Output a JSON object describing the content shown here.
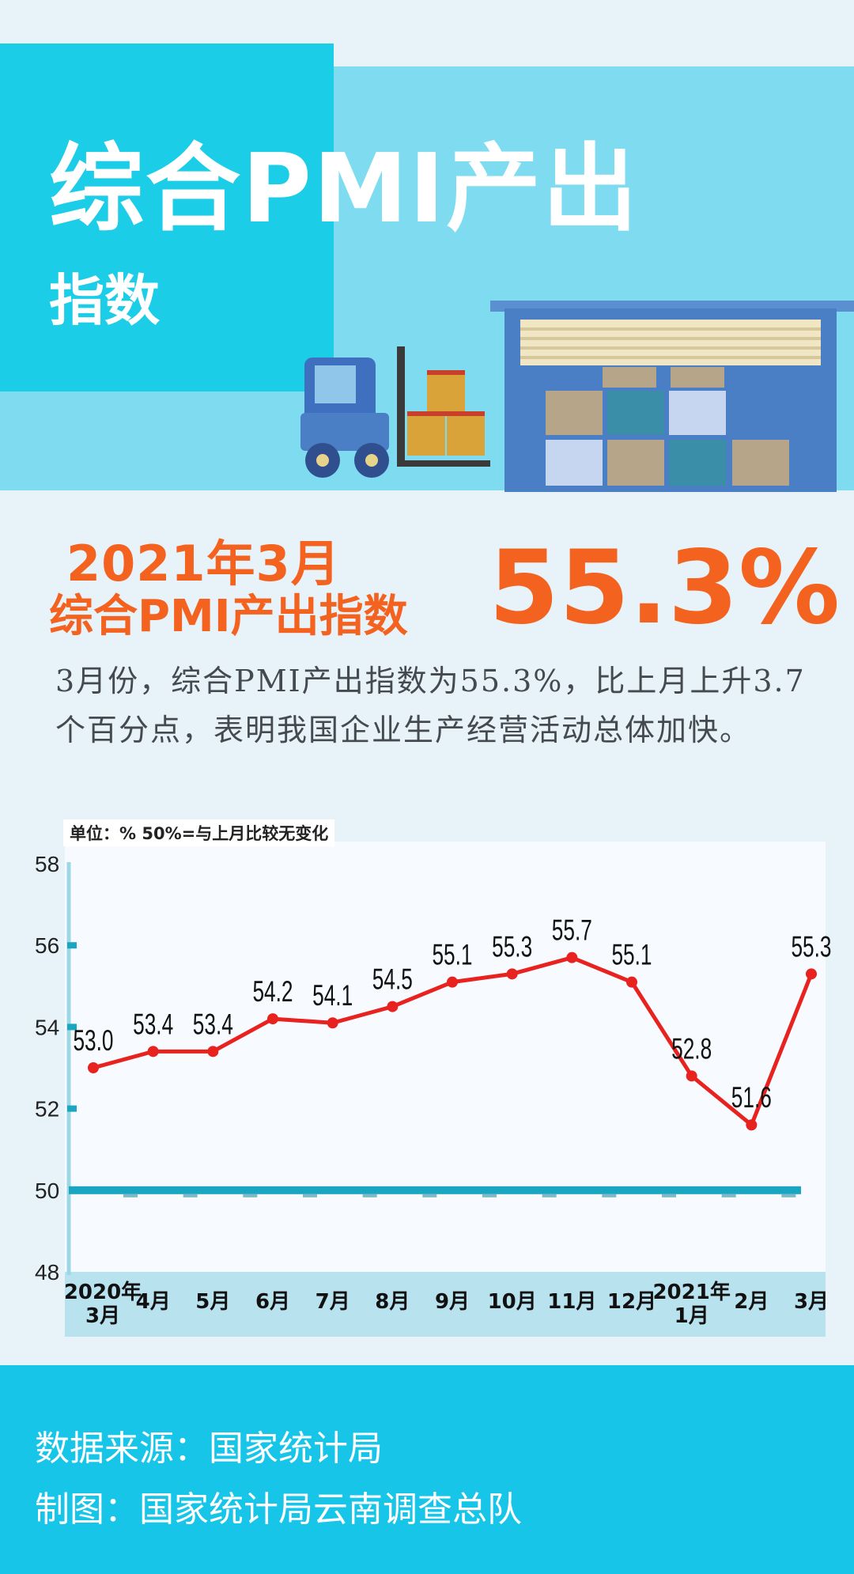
{
  "header": {
    "title_line1": "综合PMI产出",
    "title_line2": "指数"
  },
  "headline": {
    "line1": "2021年3月",
    "line2": "综合PMI产出指数",
    "value": "55.3%"
  },
  "description": "3月份，综合PMI产出指数为55.3%，比上月上升3.7个百分点，表明我国企业生产经营活动总体加快。",
  "chart_data": {
    "type": "line",
    "unit_label": "单位：%  50%=与上月比较无变化",
    "categories": [
      [
        "2020年",
        "3月"
      ],
      [
        "4月"
      ],
      [
        "5月"
      ],
      [
        "6月"
      ],
      [
        "7月"
      ],
      [
        "8月"
      ],
      [
        "9月"
      ],
      [
        "10月"
      ],
      [
        "11月"
      ],
      [
        "12月"
      ],
      [
        "2021年",
        "1月"
      ],
      [
        "2月"
      ],
      [
        "3月"
      ]
    ],
    "values": [
      53.0,
      53.4,
      53.4,
      54.2,
      54.1,
      54.5,
      55.1,
      55.3,
      55.7,
      55.1,
      52.8,
      51.6,
      55.3
    ],
    "data_labels": [
      "53.0",
      "53.4",
      "53.4",
      "54.2",
      "54.1",
      "54.5",
      "55.1",
      "55.3",
      "55.7",
      "55.1",
      "52.8",
      "51.6",
      "55.3"
    ],
    "y_ticks": [
      "58",
      "56",
      "54",
      "52",
      "50",
      "48"
    ],
    "ylim": [
      48,
      58
    ],
    "reference_line": 50,
    "line_color": "#e8221e",
    "reference_color": "#1aa6c0"
  },
  "footer": {
    "source": "数据来源：国家统计局",
    "made_by": "制图：国家统计局云南调查总队"
  }
}
